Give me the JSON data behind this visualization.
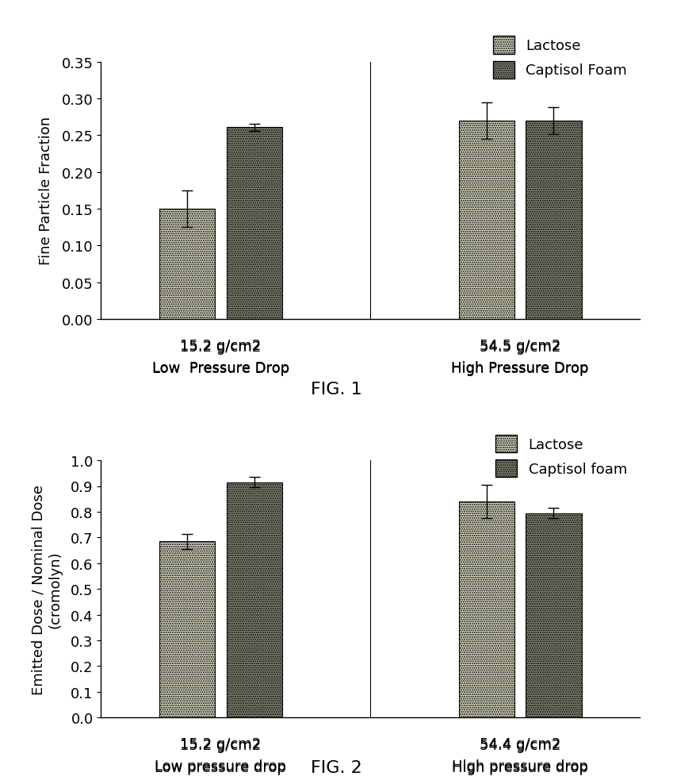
{
  "fig1": {
    "title": "FIG. 1",
    "ylabel": "Fine Particle Fraction",
    "groups": [
      "15.2 g/cm2\nLow  Pressure Drop",
      "54.5 g/cm2\nHigh Pressure Drop"
    ],
    "lactose_values": [
      0.15,
      0.27
    ],
    "captisol_values": [
      0.261,
      0.27
    ],
    "lactose_errors": [
      0.025,
      0.025
    ],
    "captisol_errors": [
      0.005,
      0.018
    ],
    "ylim": [
      0,
      0.35
    ],
    "yticks": [
      0,
      0.05,
      0.1,
      0.15,
      0.2,
      0.25,
      0.3,
      0.35
    ],
    "legend_labels": [
      "Lactose",
      "Captisol Foam"
    ]
  },
  "fig2": {
    "title": "FIG. 2",
    "ylabel": "Emitted Dose / Nominal Dose\n(cromolyn)",
    "groups": [
      "15.2 g/cm2\nLow pressure drop",
      "54.4 g/cm2\nHigh pressure drop"
    ],
    "lactose_values": [
      0.685,
      0.84
    ],
    "captisol_values": [
      0.915,
      0.795
    ],
    "lactose_errors": [
      0.03,
      0.065
    ],
    "captisol_errors": [
      0.02,
      0.02
    ],
    "ylim": [
      0,
      1.0
    ],
    "yticks": [
      0,
      0.1,
      0.2,
      0.3,
      0.4,
      0.5,
      0.6,
      0.7,
      0.8,
      0.9,
      1.0
    ],
    "legend_labels": [
      "Lactose",
      "Captisol foam"
    ]
  },
  "lactose_color": "#c8c8a0",
  "captisol_color": "#707060",
  "lactose_hatch": ".",
  "captisol_hatch": ".",
  "bar_width": 0.28,
  "background_color": "#ffffff",
  "font_size": 13,
  "title_font_size": 16,
  "label_font_size": 13
}
